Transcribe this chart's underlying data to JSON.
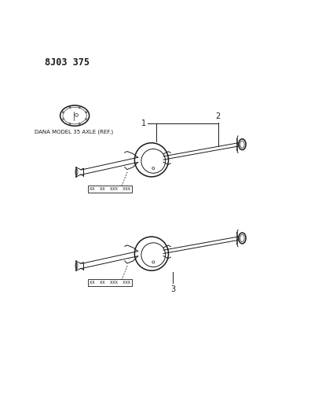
{
  "title": "8J03 375",
  "background_color": "#ffffff",
  "text_color": "#1a1a1a",
  "ref_label": "DANA MODEL 35 AXLE (REF.)",
  "part_numbers": [
    "1",
    "2",
    "3"
  ],
  "callout_box_text": "XX  XX  XXX  XXX",
  "lw": 0.7,
  "lw_thick": 1.1
}
